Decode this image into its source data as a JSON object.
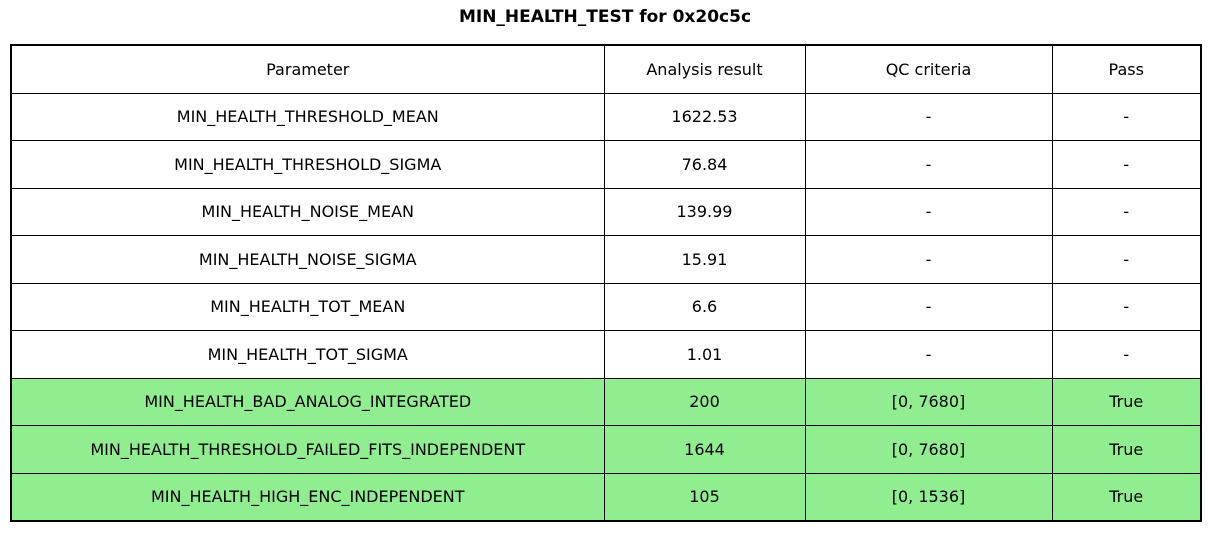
{
  "title": "MIN_HEALTH_TEST for 0x20c5c",
  "table": {
    "headers": [
      "Parameter",
      "Analysis result",
      "QC criteria",
      "Pass"
    ],
    "rows": [
      {
        "parameter": "MIN_HEALTH_THRESHOLD_MEAN",
        "analysis_result": "1622.53",
        "qc_criteria": "-",
        "pass": "-",
        "highlighted": false
      },
      {
        "parameter": "MIN_HEALTH_THRESHOLD_SIGMA",
        "analysis_result": "76.84",
        "qc_criteria": "-",
        "pass": "-",
        "highlighted": false
      },
      {
        "parameter": "MIN_HEALTH_NOISE_MEAN",
        "analysis_result": "139.99",
        "qc_criteria": "-",
        "pass": "-",
        "highlighted": false
      },
      {
        "parameter": "MIN_HEALTH_NOISE_SIGMA",
        "analysis_result": "15.91",
        "qc_criteria": "-",
        "pass": "-",
        "highlighted": false
      },
      {
        "parameter": "MIN_HEALTH_TOT_MEAN",
        "analysis_result": "6.6",
        "qc_criteria": "-",
        "pass": "-",
        "highlighted": false
      },
      {
        "parameter": "MIN_HEALTH_TOT_SIGMA",
        "analysis_result": "1.01",
        "qc_criteria": "-",
        "pass": "-",
        "highlighted": false
      },
      {
        "parameter": "MIN_HEALTH_BAD_ANALOG_INTEGRATED",
        "analysis_result": "200",
        "qc_criteria": "[0, 7680]",
        "pass": "True",
        "highlighted": true
      },
      {
        "parameter": "MIN_HEALTH_THRESHOLD_FAILED_FITS_INDEPENDENT",
        "analysis_result": "1644",
        "qc_criteria": "[0, 7680]",
        "pass": "True",
        "highlighted": true
      },
      {
        "parameter": "MIN_HEALTH_HIGH_ENC_INDEPENDENT",
        "analysis_result": "105",
        "qc_criteria": "[0, 1536]",
        "pass": "True",
        "highlighted": true
      }
    ]
  },
  "colors": {
    "pass_row_background": "#90EE90",
    "border": "#000000",
    "background": "#FFFFFF"
  }
}
